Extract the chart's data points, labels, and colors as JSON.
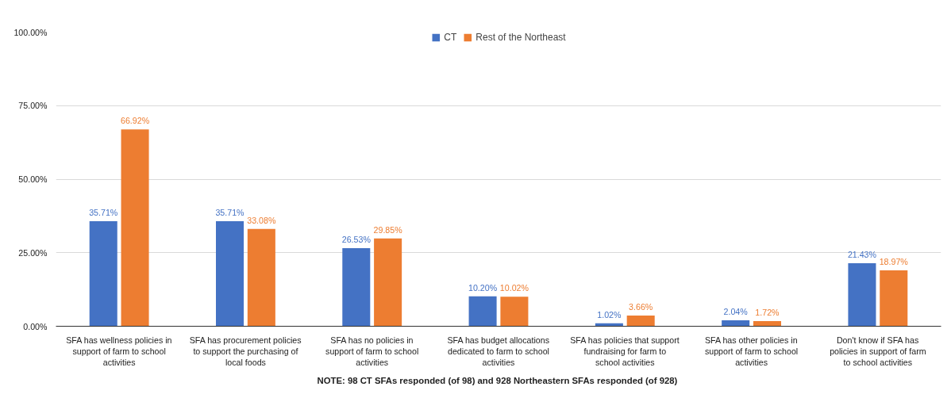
{
  "chart_data": {
    "type": "bar",
    "categories": [
      "SFA has wellness policies in support of farm to school activities",
      "SFA has procurement policies to support the purchasing of local foods",
      "SFA has no policies in support of farm to school activities",
      "SFA has budget allocations dedicated to farm to school activities",
      "SFA has policies that support fundraising for farm to school activities",
      "SFA has other policies in support of farm to school activities",
      "Don't know if SFA has policies in support of farm to school activities"
    ],
    "series": [
      {
        "name": "CT",
        "color": "#4472c4",
        "values": [
          35.71,
          35.71,
          26.53,
          10.2,
          1.02,
          2.04,
          21.43
        ],
        "value_labels": [
          "35.71%",
          "35.71%",
          "26.53%",
          "10.20%",
          "1.02%",
          "2.04%",
          "21.43%"
        ]
      },
      {
        "name": "Rest of the Northeast",
        "color": "#ed7d31",
        "values": [
          66.92,
          33.08,
          29.85,
          10.02,
          3.66,
          1.72,
          18.97
        ],
        "value_labels": [
          "66.92%",
          "33.08%",
          "29.85%",
          "10.02%",
          "3.66%",
          "1.72%",
          "18.97%"
        ]
      }
    ],
    "ylim": [
      0,
      100
    ],
    "yticks": [
      {
        "value": 0,
        "label": "0.00%"
      },
      {
        "value": 25,
        "label": "25.00%"
      },
      {
        "value": 50,
        "label": "50.00%"
      },
      {
        "value": 75,
        "label": "75.00%"
      },
      {
        "value": 100,
        "label": "100.00%"
      }
    ],
    "grid": "y",
    "legend": "top",
    "annotations": [
      "NOTE: 98 CT SFAs responded  (of 98) and 928 Northeastern SFAs responded (of 928)"
    ]
  }
}
